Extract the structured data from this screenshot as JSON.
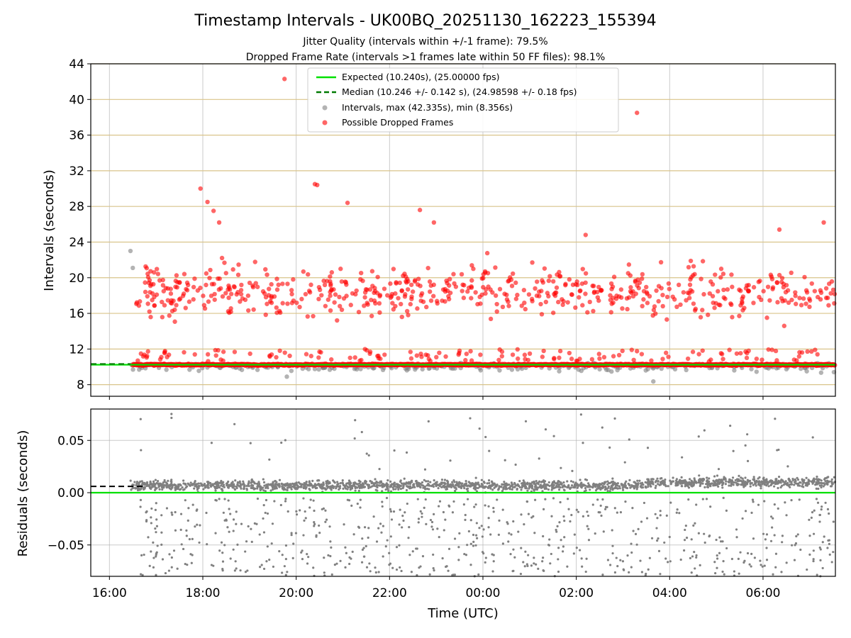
{
  "chart_data": {
    "type": "scatter",
    "title": "Timestamp Intervals - UK00BQ_20251130_162223_155394",
    "subtitle_1": "Jitter Quality (intervals within +/-1 frame): 79.5%",
    "subtitle_2": "Dropped Frame Rate (intervals >1 frames late within 50 FF files): 98.1%",
    "xlabel": "Time (UTC)",
    "x_ticks": [
      "16:00",
      "18:00",
      "20:00",
      "22:00",
      "00:00",
      "02:00",
      "04:00",
      "06:00"
    ],
    "x_range_hours": [
      15.6,
      31.55
    ],
    "top_panel": {
      "ylabel": "Intervals (seconds)",
      "ylim": [
        6.7,
        44
      ],
      "y_ticks": [
        "8",
        "12",
        "16",
        "20",
        "24",
        "28",
        "32",
        "36",
        "40",
        "44"
      ],
      "legend": [
        "Expected (10.240s), (25.00000 fps)",
        "Median (10.246 +/- 0.142 s), (24.98598 +/- 0.18 fps)",
        "Intervals, max (42.335s), min (8.356s)",
        "Possible Dropped Frames"
      ],
      "expected_interval": 10.24,
      "median_interval": 10.246,
      "max_interval": 42.335,
      "min_interval": 8.356,
      "data_start_hour": 16.45,
      "data_end_hour": 31.55,
      "outliers": [
        {
          "t": 16.45,
          "v": 23.0,
          "kind": "interval"
        },
        {
          "t": 16.5,
          "v": 21.1,
          "kind": "interval"
        },
        {
          "t": 17.95,
          "v": 30.0,
          "kind": "dropped"
        },
        {
          "t": 18.1,
          "v": 28.5,
          "kind": "dropped"
        },
        {
          "t": 18.23,
          "v": 27.5,
          "kind": "dropped"
        },
        {
          "t": 18.35,
          "v": 26.2,
          "kind": "dropped"
        },
        {
          "t": 19.75,
          "v": 42.3,
          "kind": "dropped"
        },
        {
          "t": 20.4,
          "v": 30.5,
          "kind": "dropped"
        },
        {
          "t": 20.45,
          "v": 30.4,
          "kind": "dropped"
        },
        {
          "t": 21.1,
          "v": 28.4,
          "kind": "dropped"
        },
        {
          "t": 22.65,
          "v": 27.6,
          "kind": "dropped"
        },
        {
          "t": 22.95,
          "v": 26.2,
          "kind": "dropped"
        },
        {
          "t": 26.2,
          "v": 24.8,
          "kind": "dropped"
        },
        {
          "t": 27.3,
          "v": 38.5,
          "kind": "dropped"
        },
        {
          "t": 30.35,
          "v": 25.4,
          "kind": "dropped"
        },
        {
          "t": 31.3,
          "v": 26.2,
          "kind": "dropped"
        },
        {
          "t": 19.8,
          "v": 8.9,
          "kind": "interval"
        },
        {
          "t": 27.65,
          "v": 8.36,
          "kind": "interval"
        }
      ]
    },
    "bottom_panel": {
      "ylabel": "Residuals (seconds)",
      "ylim": [
        -0.08,
        0.08
      ],
      "y_ticks": [
        "0.05",
        "0.00",
        "−0.05"
      ],
      "expected_residual": 0.0,
      "median_residual": 0.006
    },
    "colors": {
      "expected": "#00e000",
      "median": "#007a00",
      "interval": "#808080",
      "dropped": "#ff0000",
      "grid_top": "#d9c48a"
    }
  }
}
